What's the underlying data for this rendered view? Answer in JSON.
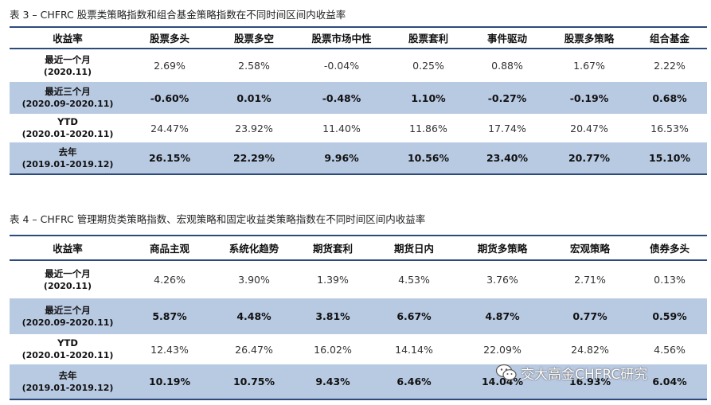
{
  "table3": {
    "caption": "表 3 – CHFRC 股票类策略指数和组合基金策略指数在不同时间区间内收益率",
    "headers": [
      "收益率",
      "股票多头",
      "股票多空",
      "股票市场中性",
      "股票套利",
      "事件驱动",
      "股票多策略",
      "组合基金"
    ],
    "rows": [
      {
        "label": "最近一个月",
        "period": "(2020.11)",
        "values": [
          "2.69%",
          "2.58%",
          "-0.04%",
          "0.25%",
          "0.88%",
          "1.67%",
          "2.22%"
        ]
      },
      {
        "label": "最近三个月",
        "period": "(2020.09-2020.11)",
        "values": [
          "-0.60%",
          "0.01%",
          "-0.48%",
          "1.10%",
          "-0.27%",
          "-0.19%",
          "0.68%"
        ]
      },
      {
        "label": "YTD",
        "period": "(2020.01-2020.11)",
        "values": [
          "24.47%",
          "23.92%",
          "11.40%",
          "11.86%",
          "17.74%",
          "20.47%",
          "16.53%"
        ]
      },
      {
        "label": "去年",
        "period": "(2019.01-2019.12)",
        "values": [
          "26.15%",
          "22.29%",
          "9.96%",
          "10.56%",
          "23.40%",
          "20.77%",
          "15.10%"
        ]
      }
    ]
  },
  "table4": {
    "caption": "表 4 – CHFRC 管理期货类策略指数、宏观策略和固定收益类策略指数在不同时间区间内收益率",
    "headers": [
      "收益率",
      "商品主观",
      "系统化趋势",
      "期货套利",
      "期货日内",
      "期货多策略",
      "宏观策略",
      "债券多头"
    ],
    "rows": [
      {
        "label": "最近一个月",
        "period": "(2020.11)",
        "values": [
          "4.26%",
          "3.90%",
          "1.39%",
          "4.53%",
          "3.76%",
          "2.71%",
          "0.13%"
        ]
      },
      {
        "label": "最近三个月",
        "period": "(2020.09-2020.11)",
        "values": [
          "5.87%",
          "4.48%",
          "3.81%",
          "6.67%",
          "4.87%",
          "0.77%",
          "0.59%"
        ]
      },
      {
        "label": "YTD",
        "period": "(2020.01-2020.11)",
        "values": [
          "12.43%",
          "26.47%",
          "16.02%",
          "14.14%",
          "22.09%",
          "24.82%",
          "4.56%"
        ]
      },
      {
        "label": "去年",
        "period": "(2019.01-2019.12)",
        "values": [
          "10.19%",
          "10.75%",
          "9.43%",
          "6.46%",
          "14.04%",
          "16.93%",
          "6.04%"
        ]
      }
    ]
  },
  "watermark": {
    "text": "交大高金CHFRC研究",
    "icon": "wechat-icon"
  }
}
